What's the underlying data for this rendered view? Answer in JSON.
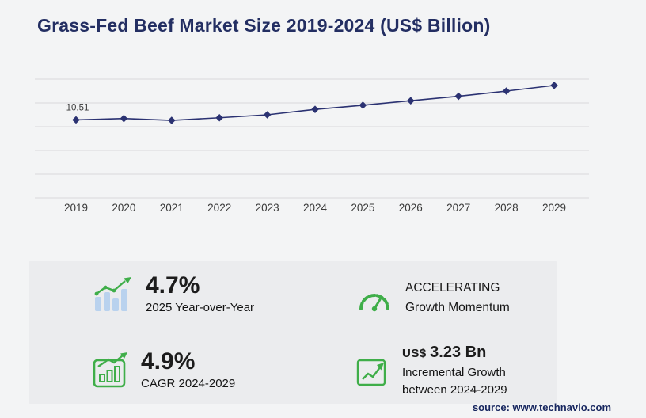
{
  "title": "Grass-Fed Beef Market Size 2019-2024 (US$ Billion)",
  "source": "source: www.technavio.com",
  "colors": {
    "accent_green": "#3fae49",
    "navy_title": "#232e62",
    "line_navy": "#2b3272",
    "icon_bar_blue": "#b9d2ee"
  },
  "chart_data": {
    "type": "line",
    "title": "Grass-Fed Beef Market Size 2019-2024 (US$ Billion)",
    "categories": [
      "2019",
      "2020",
      "2021",
      "2022",
      "2023",
      "2024",
      "2025",
      "2026",
      "2027",
      "2028",
      "2029"
    ],
    "series": [
      {
        "name": "Market size (US$ Billion)",
        "values": [
          10.51,
          10.7,
          10.45,
          10.8,
          11.2,
          11.93,
          12.49,
          13.1,
          13.7,
          14.4,
          15.16
        ]
      }
    ],
    "first_point_label": "10.51",
    "ylim": [
      0,
      16
    ],
    "grid": true,
    "legend": "none",
    "line_color": "#2b3272"
  },
  "stats": {
    "yoy": {
      "value": "4.7%",
      "label": "2025 Year-over-Year"
    },
    "momentum": {
      "line1": "ACCELERATING",
      "line2": "Growth Momentum"
    },
    "cagr": {
      "value": "4.9%",
      "label": "CAGR 2024-2029"
    },
    "incremental": {
      "currency": "US$",
      "amount": "3.23 Bn",
      "label": "Incremental Growth between 2024-2029"
    }
  }
}
